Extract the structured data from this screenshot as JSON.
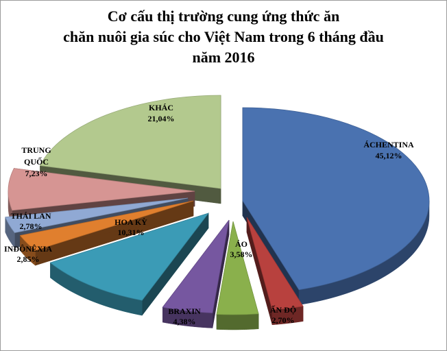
{
  "chart_data": {
    "type": "pie",
    "title": [
      "Cơ cấu thị trường cung ứng thức ăn",
      "chăn nuôi gia súc cho Việt Nam trong 6 tháng đầu",
      "năm 2016"
    ],
    "slices": [
      {
        "name": "ÁCHENTINA",
        "percent": "45,12%",
        "value": 45.12,
        "color": "#4a72b0"
      },
      {
        "name": "ẤN ĐỘ",
        "percent": "2,70%",
        "value": 2.7,
        "color": "#b8413e"
      },
      {
        "name": "ÁO",
        "percent": "3,58%",
        "value": 3.58,
        "color": "#8ab04c"
      },
      {
        "name": "BRAXIN",
        "percent": "4,38%",
        "value": 4.38,
        "color": "#7657a0"
      },
      {
        "name": "HOA KỲ",
        "percent": "10,31%",
        "value": 10.31,
        "color": "#3b9bb6"
      },
      {
        "name": "INĐÔNÊXIA",
        "percent": "2,85%",
        "value": 2.85,
        "color": "#e07f2e"
      },
      {
        "name": "THÁI LAN",
        "percent": "2,78%",
        "value": 2.78,
        "color": "#90a9d4"
      },
      {
        "name": "TRUNG QUỐC",
        "name_lines": [
          "TRUNG",
          "QUỐC"
        ],
        "percent": "7,23%",
        "value": 7.23,
        "color": "#d69593"
      },
      {
        "name": "KHÁC",
        "percent": "21,04%",
        "value": 21.04,
        "color": "#b3c98e"
      }
    ],
    "legend": "none"
  }
}
